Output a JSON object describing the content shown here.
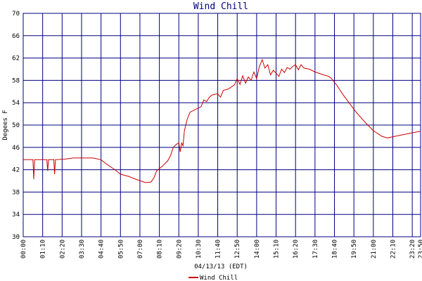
{
  "chart_data": {
    "type": "line",
    "title": "Wind Chill",
    "x_label": "04/13/13 (EDT)",
    "y_label": "Degees F",
    "x": [
      0,
      35,
      38,
      41,
      85,
      88,
      91,
      110,
      113,
      116,
      150,
      180,
      250,
      280,
      300,
      330,
      350,
      380,
      410,
      440,
      460,
      470,
      480,
      500,
      520,
      530,
      540,
      550,
      560,
      565,
      570,
      575,
      580,
      590,
      600,
      620,
      640,
      650,
      660,
      670,
      680,
      700,
      710,
      720,
      740,
      760,
      770,
      780,
      790,
      800,
      810,
      820,
      830,
      840,
      850,
      860,
      870,
      880,
      890,
      900,
      910,
      920,
      930,
      940,
      950,
      960,
      970,
      980,
      990,
      1000,
      1010,
      1030,
      1050,
      1080,
      1100,
      1110,
      1130,
      1150,
      1180,
      1200,
      1230,
      1260,
      1290,
      1310,
      1330,
      1360,
      1400,
      1430
    ],
    "series": [
      {
        "name": "Wind Chill",
        "color": "#cc0000",
        "values": [
          43.8,
          43.8,
          40.3,
          43.8,
          43.8,
          41.8,
          43.8,
          43.8,
          41.2,
          43.8,
          43.9,
          44.1,
          44.1,
          43.8,
          43.0,
          42.0,
          41.2,
          40.8,
          40.2,
          39.7,
          39.8,
          40.5,
          41.8,
          42.6,
          43.6,
          44.5,
          46.0,
          46.5,
          46.8,
          45.2,
          46.8,
          46.3,
          49.0,
          51.0,
          52.3,
          52.8,
          53.3,
          54.5,
          54.2,
          55.0,
          55.4,
          55.6,
          55.0,
          56.2,
          56.5,
          57.2,
          58.3,
          57.3,
          58.8,
          57.5,
          58.6,
          58.0,
          59.5,
          58.3,
          60.5,
          61.7,
          60.2,
          60.8,
          59.0,
          59.8,
          59.3,
          58.7,
          60.0,
          59.4,
          60.3,
          60.0,
          60.5,
          60.8,
          59.9,
          60.8,
          60.2,
          60.0,
          59.5,
          59.0,
          58.7,
          58.3,
          57.0,
          55.5,
          53.5,
          52.2,
          50.5,
          49.0,
          48.0,
          47.7,
          47.9,
          48.2,
          48.6,
          48.9
        ]
      }
    ],
    "xlim": [
      0,
      1430
    ],
    "xticks": [
      {
        "value": 0,
        "label": "00:00"
      },
      {
        "value": 70,
        "label": "01:10"
      },
      {
        "value": 140,
        "label": "02:20"
      },
      {
        "value": 210,
        "label": "03:30"
      },
      {
        "value": 280,
        "label": "04:40"
      },
      {
        "value": 350,
        "label": "05:50"
      },
      {
        "value": 420,
        "label": "07:00"
      },
      {
        "value": 490,
        "label": "08:10"
      },
      {
        "value": 560,
        "label": "09:20"
      },
      {
        "value": 630,
        "label": "10:30"
      },
      {
        "value": 700,
        "label": "11:40"
      },
      {
        "value": 770,
        "label": "12:50"
      },
      {
        "value": 840,
        "label": "14:00"
      },
      {
        "value": 910,
        "label": "15:10"
      },
      {
        "value": 980,
        "label": "16:20"
      },
      {
        "value": 1050,
        "label": "17:30"
      },
      {
        "value": 1120,
        "label": "18:40"
      },
      {
        "value": 1190,
        "label": "19:50"
      },
      {
        "value": 1260,
        "label": "21:00"
      },
      {
        "value": 1330,
        "label": "22:10"
      },
      {
        "value": 1400,
        "label": "23:20"
      },
      {
        "value": 1430,
        "label": "23:50"
      }
    ],
    "ylim": [
      30,
      70
    ],
    "yticks": [
      30,
      34,
      38,
      42,
      46,
      50,
      54,
      58,
      62,
      66,
      70
    ],
    "grid": true,
    "grid_color": "#000080"
  }
}
